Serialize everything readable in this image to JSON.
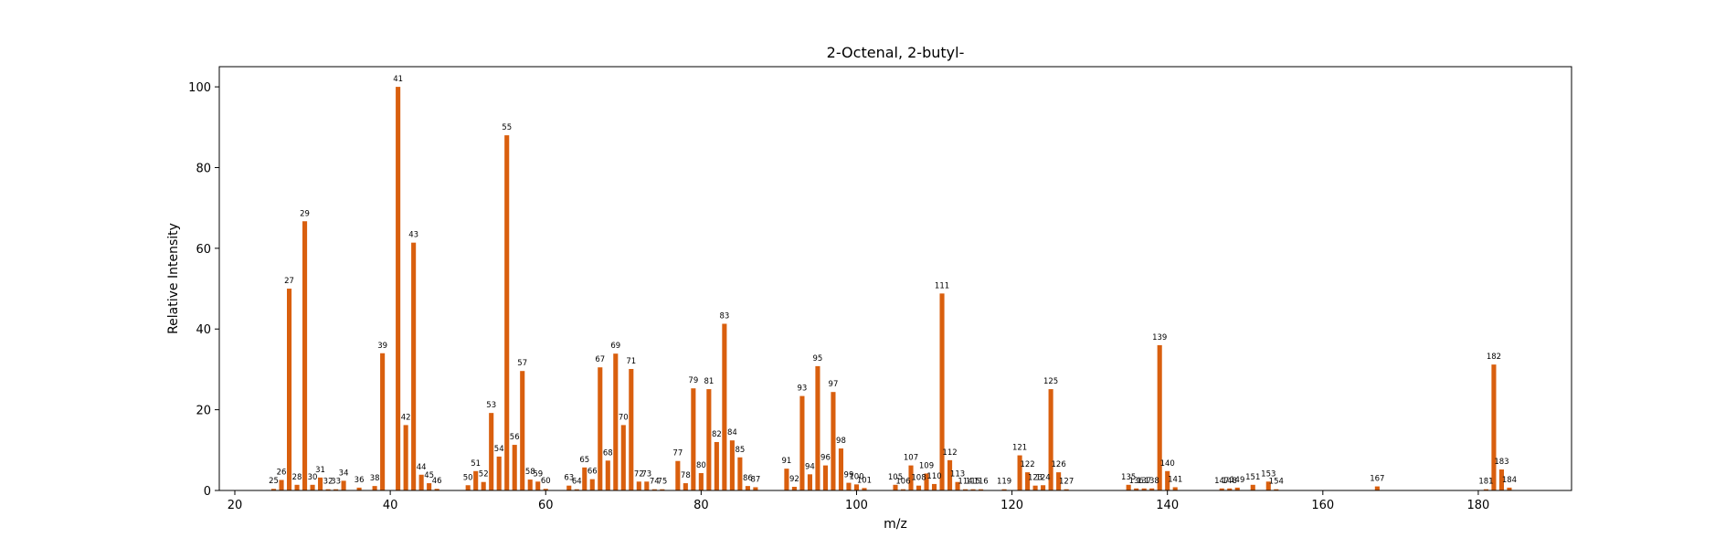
{
  "chart_data": {
    "type": "bar",
    "title": "2-Octenal, 2-butyl-",
    "xlabel": "m/z",
    "ylabel": "Relative Intensity",
    "xlim": [
      18,
      192
    ],
    "ylim": [
      0,
      105
    ],
    "xticks": [
      20,
      40,
      60,
      80,
      100,
      120,
      140,
      160,
      180
    ],
    "yticks": [
      0,
      20,
      40,
      60,
      80,
      100
    ],
    "bar_color": "#d95f0e",
    "grid": false,
    "legend": false,
    "x": [
      25,
      26,
      27,
      28,
      29,
      30,
      31,
      32,
      33,
      34,
      36,
      38,
      39,
      41,
      42,
      43,
      44,
      45,
      46,
      50,
      51,
      52,
      53,
      54,
      55,
      56,
      57,
      58,
      59,
      60,
      63,
      64,
      65,
      66,
      67,
      68,
      69,
      70,
      71,
      72,
      73,
      74,
      75,
      77,
      78,
      79,
      80,
      81,
      82,
      83,
      84,
      85,
      86,
      87,
      91,
      92,
      93,
      94,
      95,
      96,
      97,
      98,
      99,
      100,
      101,
      105,
      106,
      107,
      108,
      109,
      110,
      111,
      112,
      113,
      114,
      115,
      116,
      119,
      121,
      122,
      123,
      124,
      125,
      126,
      127,
      135,
      136,
      137,
      138,
      139,
      140,
      141,
      147,
      148,
      149,
      151,
      153,
      154,
      167,
      181,
      182,
      183,
      184
    ],
    "y": [
      0.4,
      2.6,
      50,
      1.4,
      66.7,
      1.4,
      3.2,
      0.3,
      0.3,
      2.4,
      0.7,
      1.1,
      34,
      100,
      16.2,
      61.4,
      3.9,
      1.8,
      0.4,
      1.3,
      4.8,
      2.1,
      19.2,
      8.4,
      88,
      11.3,
      29.6,
      2.7,
      2.2,
      0.4,
      1.2,
      0.3,
      5.7,
      2.8,
      30.5,
      7.4,
      33.9,
      16.2,
      30.1,
      2.2,
      2.2,
      0.3,
      0.3,
      7.3,
      1.8,
      25.3,
      4.3,
      25.1,
      12,
      41.3,
      12.4,
      8.2,
      1.1,
      0.8,
      5.4,
      0.9,
      23.4,
      4,
      30.8,
      6.2,
      24.4,
      10.4,
      1.9,
      1.5,
      0.6,
      1.4,
      0.3,
      6.2,
      1.2,
      4.2,
      1.6,
      48.8,
      7.5,
      2.1,
      0.3,
      0.3,
      0.3,
      0.3,
      8.7,
      4.5,
      1.2,
      1.3,
      25.1,
      4.5,
      0.3,
      1.4,
      0.5,
      0.5,
      0.5,
      36,
      4.8,
      0.8,
      0.5,
      0.5,
      0.7,
      1.4,
      2.2,
      0.3,
      1,
      0.3,
      31.2,
      5.2,
      0.7
    ]
  }
}
